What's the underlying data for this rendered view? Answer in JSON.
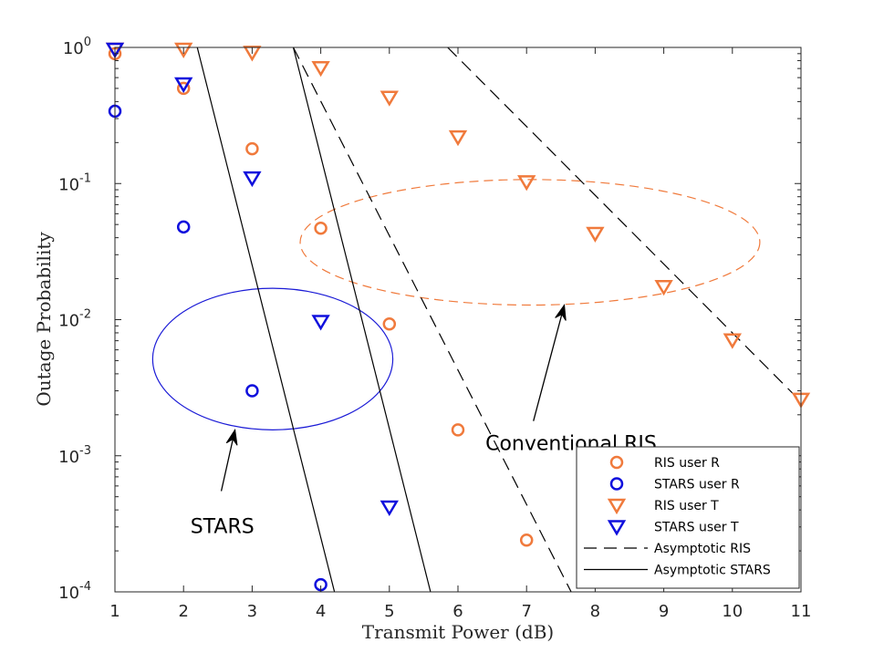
{
  "chart_data": {
    "type": "scatter",
    "xlabel": "Transmit Power (dB)",
    "ylabel": "Outage Probability",
    "xlim": [
      1,
      11
    ],
    "ylim": [
      0.0001,
      1
    ],
    "yscale": "log",
    "x_ticks": [
      "1",
      "2",
      "3",
      "4",
      "5",
      "6",
      "7",
      "8",
      "9",
      "10",
      "11"
    ],
    "y_ticks": [
      {
        "value": 1,
        "base": "10",
        "exp": "0"
      },
      {
        "value": 0.1,
        "base": "10",
        "exp": "-1"
      },
      {
        "value": 0.01,
        "base": "10",
        "exp": "-2"
      },
      {
        "value": 0.001,
        "base": "10",
        "exp": "-3"
      },
      {
        "value": 0.0001,
        "base": "10",
        "exp": "-4"
      }
    ],
    "legend_position": "bottom-right",
    "series": [
      {
        "name": "RIS user R",
        "marker": "circle",
        "color": "#f07a3c",
        "x": [
          1,
          2,
          3,
          4,
          5,
          6,
          7
        ],
        "y": [
          0.9,
          0.5,
          0.18,
          0.047,
          0.0093,
          0.00155,
          0.00024
        ]
      },
      {
        "name": "STARS user R",
        "marker": "circle",
        "color": "#1010dd",
        "x": [
          1,
          2,
          3,
          4
        ],
        "y": [
          0.34,
          0.048,
          0.003,
          0.000113
        ]
      },
      {
        "name": "RIS user T",
        "marker": "triangle-down",
        "color": "#f07a3c",
        "x": [
          1,
          2,
          3,
          4,
          5,
          6,
          7,
          8,
          9,
          10,
          11
        ],
        "y": [
          0.97,
          0.97,
          0.92,
          0.71,
          0.43,
          0.22,
          0.103,
          0.043,
          0.0175,
          0.0071,
          0.0026
        ]
      },
      {
        "name": "STARS user T",
        "marker": "triangle-down",
        "color": "#1010dd",
        "x": [
          1,
          2,
          3,
          4,
          5
        ],
        "y": [
          0.97,
          0.54,
          0.11,
          0.0097,
          0.00042
        ]
      },
      {
        "name": "Asymptotic RIS",
        "type": "line",
        "style": "dashed",
        "color": "#000000",
        "lines": [
          {
            "x": [
              3.6,
              7.65
            ],
            "y": [
              1,
              0.0001
            ]
          },
          {
            "x": [
              5.85,
              11
            ],
            "y": [
              1,
              0.0025
            ]
          }
        ]
      },
      {
        "name": "Asymptotic STARS",
        "type": "line",
        "style": "solid",
        "color": "#000000",
        "lines": [
          {
            "x": [
              2.2,
              4.2
            ],
            "y": [
              1,
              0.0001
            ]
          },
          {
            "x": [
              3.6,
              5.6
            ],
            "y": [
              1,
              0.0001
            ]
          }
        ]
      }
    ],
    "annotations": [
      {
        "text": "STARS",
        "ellipse": {
          "cx": 3.3,
          "cy": 0.005,
          "rx": 1.75,
          "y_top": 0.017,
          "y_bottom": 0.00155,
          "style": "solid",
          "color": "#1a1ad6"
        },
        "arrow": {
          "from": [
            2.55,
            0.00055
          ],
          "to": [
            2.75,
            0.00155
          ]
        },
        "text_at": [
          2.1,
          0.00027
        ]
      },
      {
        "text": "Conventional RIS",
        "ellipse": {
          "cx": 7.05,
          "cy": 0.038,
          "rx": 3.35,
          "y_top": 0.107,
          "y_bottom": 0.0128,
          "style": "dashed",
          "color": "#f07a3c"
        },
        "arrow": {
          "from": [
            7.1,
            0.0018
          ],
          "to": [
            7.55,
            0.0128
          ]
        },
        "text_at": [
          6.4,
          0.0011
        ]
      }
    ]
  }
}
